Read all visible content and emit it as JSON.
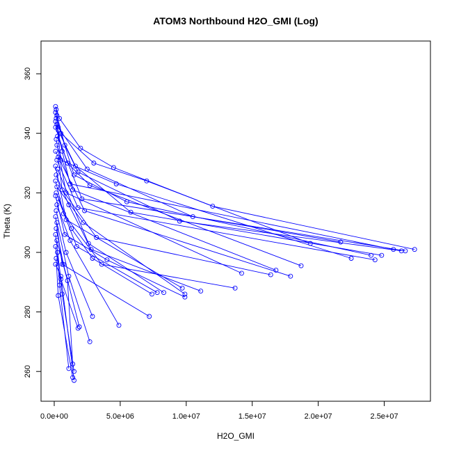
{
  "chart_data": {
    "type": "scatter",
    "title": "ATOM3 Northbound H2O_GMI (Log)",
    "xlabel": "H2O_GMI",
    "ylabel": "Theta (K)",
    "xlim": [
      -1000000,
      28500000
    ],
    "ylim": [
      250,
      371
    ],
    "x_ticks": [
      0,
      5000000,
      10000000,
      15000000,
      20000000,
      25000000
    ],
    "x_tick_labels": [
      "0.0e+00",
      "5.0e+06",
      "1.0e+07",
      "1.5e+07",
      "2.0e+07",
      "2.5e+07"
    ],
    "y_ticks": [
      260,
      280,
      300,
      320,
      340,
      360
    ],
    "y_tick_labels": [
      "260",
      "280",
      "300",
      "320",
      "340",
      "360"
    ],
    "grid": false,
    "series_color": "#0000ff",
    "style": "points connected by lines",
    "profiles": [
      [
        [
          100000,
          349
        ],
        [
          400000,
          345
        ],
        [
          2000000,
          335
        ],
        [
          4500000,
          328.5
        ],
        [
          12000000,
          315.5
        ],
        [
          27300000,
          301
        ]
      ],
      [
        [
          150000,
          348
        ],
        [
          500000,
          340
        ],
        [
          3000000,
          330
        ],
        [
          7000000,
          324
        ],
        [
          19400000,
          303
        ]
      ],
      [
        [
          100000,
          347
        ],
        [
          300000,
          342
        ],
        [
          2500000,
          328
        ],
        [
          10500000,
          312
        ],
        [
          21700000,
          303.5
        ]
      ],
      [
        [
          200000,
          346
        ],
        [
          800000,
          336
        ],
        [
          1800000,
          327
        ],
        [
          9500000,
          310.5
        ],
        [
          26300000,
          300.5
        ]
      ],
      [
        [
          150000,
          345
        ],
        [
          1500000,
          326
        ],
        [
          5500000,
          317
        ],
        [
          24000000,
          299
        ]
      ],
      [
        [
          100000,
          344
        ],
        [
          600000,
          334
        ],
        [
          1200000,
          323
        ],
        [
          25700000,
          301
        ]
      ],
      [
        [
          200000,
          343
        ],
        [
          500000,
          331
        ],
        [
          4700000,
          323
        ],
        [
          22500000,
          298
        ]
      ],
      [
        [
          100000,
          342
        ],
        [
          1000000,
          330
        ],
        [
          2700000,
          322.5
        ],
        [
          18700000,
          295.5
        ]
      ],
      [
        [
          300000,
          341
        ],
        [
          1600000,
          329
        ],
        [
          5800000,
          313.5
        ],
        [
          24800000,
          299
        ]
      ],
      [
        [
          250000,
          339
        ],
        [
          2100000,
          318
        ],
        [
          26600000,
          300.5
        ]
      ],
      [
        [
          150000,
          338
        ],
        [
          900000,
          320
        ],
        [
          14200000,
          293
        ]
      ],
      [
        [
          200000,
          336
        ],
        [
          1400000,
          321
        ],
        [
          16800000,
          294
        ]
      ],
      [
        [
          100000,
          334
        ],
        [
          2300000,
          314
        ],
        [
          17900000,
          292
        ]
      ],
      [
        [
          300000,
          332
        ],
        [
          600000,
          321
        ],
        [
          3200000,
          305
        ],
        [
          16400000,
          292.5
        ]
      ],
      [
        [
          200000,
          331
        ],
        [
          1800000,
          315
        ],
        [
          24300000,
          297.5
        ]
      ],
      [
        [
          100000,
          329
        ],
        [
          900000,
          311
        ],
        [
          9700000,
          288
        ]
      ],
      [
        [
          250000,
          328
        ],
        [
          2600000,
          303
        ],
        [
          8300000,
          286.5
        ]
      ],
      [
        [
          150000,
          326
        ],
        [
          1100000,
          316
        ],
        [
          2800000,
          301
        ],
        [
          11100000,
          287
        ]
      ],
      [
        [
          100000,
          324
        ],
        [
          700000,
          313
        ],
        [
          3600000,
          296
        ],
        [
          13700000,
          288
        ]
      ],
      [
        [
          200000,
          322
        ],
        [
          2200000,
          310
        ],
        [
          9900000,
          286
        ]
      ],
      [
        [
          150000,
          320
        ],
        [
          1300000,
          308
        ],
        [
          2900000,
          298
        ],
        [
          7400000,
          286
        ]
      ],
      [
        [
          100000,
          319
        ],
        [
          800000,
          306
        ],
        [
          4000000,
          297.5
        ],
        [
          9900000,
          285
        ]
      ],
      [
        [
          300000,
          318
        ],
        [
          1700000,
          302
        ],
        [
          7800000,
          286.5
        ]
      ],
      [
        [
          200000,
          316
        ],
        [
          1200000,
          304
        ],
        [
          4900000,
          275.5
        ]
      ],
      [
        [
          150000,
          314
        ],
        [
          900000,
          300
        ],
        [
          2900000,
          278.5
        ]
      ],
      [
        [
          100000,
          312
        ],
        [
          600000,
          296
        ],
        [
          7200000,
          278.5
        ]
      ],
      [
        [
          200000,
          310
        ],
        [
          1100000,
          292
        ],
        [
          2700000,
          270
        ]
      ],
      [
        [
          150000,
          308
        ],
        [
          700000,
          296
        ],
        [
          1900000,
          275
        ]
      ],
      [
        [
          100000,
          306
        ],
        [
          500000,
          291
        ],
        [
          1800000,
          274.5
        ]
      ],
      [
        [
          200000,
          304
        ],
        [
          1000000,
          290.5
        ],
        [
          1400000,
          262.5
        ]
      ],
      [
        [
          100000,
          302
        ],
        [
          600000,
          286
        ],
        [
          1500000,
          260
        ]
      ],
      [
        [
          250000,
          300
        ],
        [
          400000,
          289
        ],
        [
          1100000,
          261
        ]
      ],
      [
        [
          150000,
          298
        ],
        [
          300000,
          285.5
        ],
        [
          1400000,
          258
        ]
      ],
      [
        [
          100000,
          296
        ],
        [
          500000,
          292
        ],
        [
          1500000,
          257
        ]
      ]
    ]
  }
}
